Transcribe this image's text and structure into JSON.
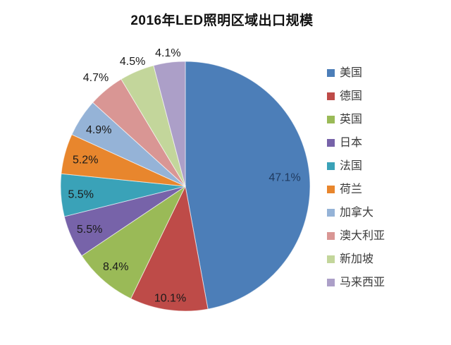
{
  "chart_data": {
    "type": "pie",
    "title": "2016年LED照明区域出口规模",
    "unit": "%",
    "direction": "clockwise",
    "start_angle_deg": 0,
    "legend_position": "right",
    "background_color": "#ffffff",
    "slices": [
      {
        "name": "美国",
        "value": 47.1,
        "display": "47.1%",
        "color": "#4C7EB8",
        "label_color": "#1F3A5F",
        "label_radius": 0.8,
        "label_placement": "inside"
      },
      {
        "name": "德国",
        "value": 10.1,
        "display": "10.1%",
        "color": "#BE4B48",
        "label_color": "#1a1a1a",
        "label_radius": 0.9,
        "label_placement": "inside"
      },
      {
        "name": "英国",
        "value": 8.4,
        "display": "8.4%",
        "color": "#9ABA57",
        "label_color": "#1a1a1a",
        "label_radius": 0.85,
        "label_placement": "inside"
      },
      {
        "name": "日本",
        "value": 5.5,
        "display": "5.5%",
        "color": "#7763A9",
        "label_color": "#1a1a1a",
        "label_radius": 0.84,
        "label_placement": "inside"
      },
      {
        "name": "法国",
        "value": 5.5,
        "display": "5.5%",
        "color": "#3AA2B8",
        "label_color": "#1a1a1a",
        "label_radius": 0.84,
        "label_placement": "inside"
      },
      {
        "name": "荷兰",
        "value": 5.2,
        "display": "5.2%",
        "color": "#E8862D",
        "label_color": "#1a1a1a",
        "label_radius": 0.83,
        "label_placement": "inside"
      },
      {
        "name": "加拿大",
        "value": 4.9,
        "display": "4.9%",
        "color": "#95B3D7",
        "label_color": "#1a1a1a",
        "label_radius": 0.83,
        "label_placement": "inside"
      },
      {
        "name": "澳大利亚",
        "value": 4.7,
        "display": "4.7%",
        "color": "#D99694",
        "label_color": "#1a1a1a",
        "label_radius": 1.13,
        "label_placement": "outside"
      },
      {
        "name": "新加坡",
        "value": 4.5,
        "display": "4.5%",
        "color": "#C3D69B",
        "label_color": "#1a1a1a",
        "label_radius": 1.09,
        "label_placement": "outside"
      },
      {
        "name": "马来西亚",
        "value": 4.1,
        "display": "4.1%",
        "color": "#AC9FC8",
        "label_color": "#1a1a1a",
        "label_radius": 1.08,
        "label_placement": "outside"
      }
    ]
  }
}
